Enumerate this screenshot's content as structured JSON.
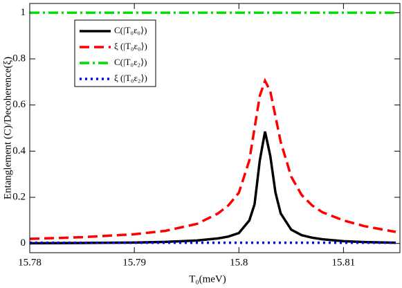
{
  "chart_data": {
    "type": "line",
    "xlabel": "T₀(meV)",
    "ylabel": "Entanglement (C)/Decoherence(ξ)",
    "x": [
      15.78,
      15.785,
      15.79,
      15.793,
      15.796,
      15.798,
      15.799,
      15.8,
      15.801,
      15.8015,
      15.802,
      15.8025,
      15.803,
      15.8035,
      15.804,
      15.805,
      15.806,
      15.807,
      15.808,
      15.81,
      15.812,
      15.815
    ],
    "series": [
      {
        "name": "C(|T₀ε₀⟩)",
        "color": "#000000",
        "linestyle": "solid",
        "values": [
          0.001,
          0.002,
          0.004,
          0.007,
          0.013,
          0.022,
          0.03,
          0.045,
          0.1,
          0.17,
          0.36,
          0.485,
          0.38,
          0.22,
          0.13,
          0.06,
          0.036,
          0.025,
          0.018,
          0.01,
          0.006,
          0.003
        ]
      },
      {
        "name": "ξ (|T₀ε₀⟩)",
        "color": "#ff0000",
        "linestyle": "dashed",
        "values": [
          0.02,
          0.027,
          0.04,
          0.055,
          0.085,
          0.13,
          0.165,
          0.22,
          0.36,
          0.5,
          0.64,
          0.705,
          0.66,
          0.55,
          0.44,
          0.29,
          0.21,
          0.165,
          0.135,
          0.1,
          0.075,
          0.05
        ]
      },
      {
        "name": "C(|T₀ε₂⟩)",
        "color": "#00dd00",
        "linestyle": "dashdot",
        "values": [
          1,
          1,
          1,
          1,
          1,
          1,
          1,
          1,
          1,
          1,
          1,
          1,
          1,
          1,
          1,
          1,
          1,
          1,
          1,
          1,
          1,
          1
        ]
      },
      {
        "name": "ξ (|T₀ε₂⟩)",
        "color": "#0000ff",
        "linestyle": "dotted",
        "values": [
          0.003,
          0.003,
          0.003,
          0.003,
          0.003,
          0.003,
          0.003,
          0.003,
          0.003,
          0.003,
          0.003,
          0.003,
          0.003,
          0.003,
          0.003,
          0.003,
          0.003,
          0.003,
          0.003,
          0.003,
          0.003,
          0.003
        ]
      }
    ],
    "xlim": [
      15.78,
      15.8154
    ],
    "xticks": [
      15.78,
      15.79,
      15.8,
      15.81
    ],
    "ylim": [
      -0.04,
      1.04
    ],
    "yticks": [
      0,
      0.2,
      0.4,
      0.6,
      0.8,
      1
    ],
    "grid": false,
    "legend": "upper left"
  }
}
